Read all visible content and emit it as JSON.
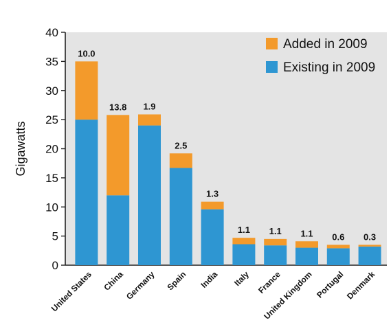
{
  "chart_data": {
    "type": "bar",
    "stacked": true,
    "title": "",
    "xlabel": "",
    "ylabel": "Gigawatts",
    "ylim": [
      0,
      40
    ],
    "yticks": [
      0,
      5,
      10,
      15,
      20,
      25,
      30,
      35,
      40
    ],
    "grid": false,
    "legend_position": "top-right",
    "categories": [
      "United States",
      "China",
      "Germany",
      "Spain",
      "India",
      "Italy",
      "France",
      "United Kingdom",
      "Portugal",
      "Denmark"
    ],
    "series": [
      {
        "name": "Existing in 2009",
        "color": "#2e96d2",
        "values": [
          25.0,
          12.0,
          24.0,
          16.7,
          9.6,
          3.6,
          3.4,
          3.0,
          2.9,
          3.2
        ]
      },
      {
        "name": "Added in 2009",
        "color": "#f39a2b",
        "values": [
          10.0,
          13.8,
          1.9,
          2.5,
          1.3,
          1.1,
          1.1,
          1.1,
          0.6,
          0.3
        ]
      }
    ],
    "data_labels": [
      "10.0",
      "13.8",
      "1.9",
      "2.5",
      "1.3",
      "1.1",
      "1.1",
      "1.1",
      "0.6",
      "0.3"
    ],
    "legend_order": [
      "Added in 2009",
      "Existing in 2009"
    ],
    "plot_background": "#e4e4e4"
  }
}
